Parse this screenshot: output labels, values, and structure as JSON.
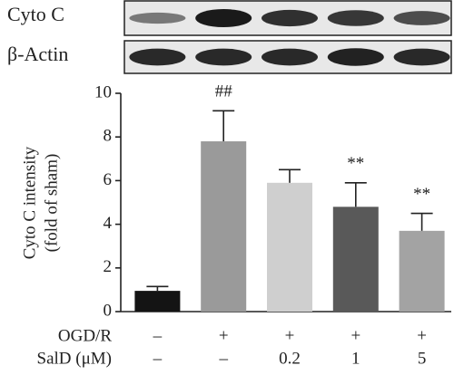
{
  "blots": {
    "labels": [
      "Cyto C",
      "β-Actin"
    ]
  },
  "chart_data": {
    "type": "bar",
    "y_label": [
      "Cyto C intensity",
      "(fold of sham)"
    ],
    "categories": [
      null,
      null,
      null,
      null,
      null
    ],
    "values": [
      0.95,
      7.8,
      5.9,
      4.8,
      3.7
    ],
    "errors": [
      0.2,
      1.4,
      0.6,
      1.1,
      0.8
    ],
    "annotations": [
      null,
      "##",
      null,
      "**",
      "**"
    ],
    "colors": [
      "#141414",
      "#9a9a9a",
      "#cfcfcf",
      "#595959",
      "#a3a3a3"
    ],
    "ylim": [
      0,
      10
    ],
    "yticks": [
      0,
      2,
      4,
      6,
      8,
      10
    ],
    "grid": false,
    "conditions": [
      {
        "name": "OGD/R",
        "values": [
          "–",
          "+",
          "+",
          "+",
          "+"
        ]
      },
      {
        "name": "SalD (μM)",
        "values": [
          "–",
          "–",
          "0.2",
          "1",
          "5"
        ]
      }
    ]
  }
}
